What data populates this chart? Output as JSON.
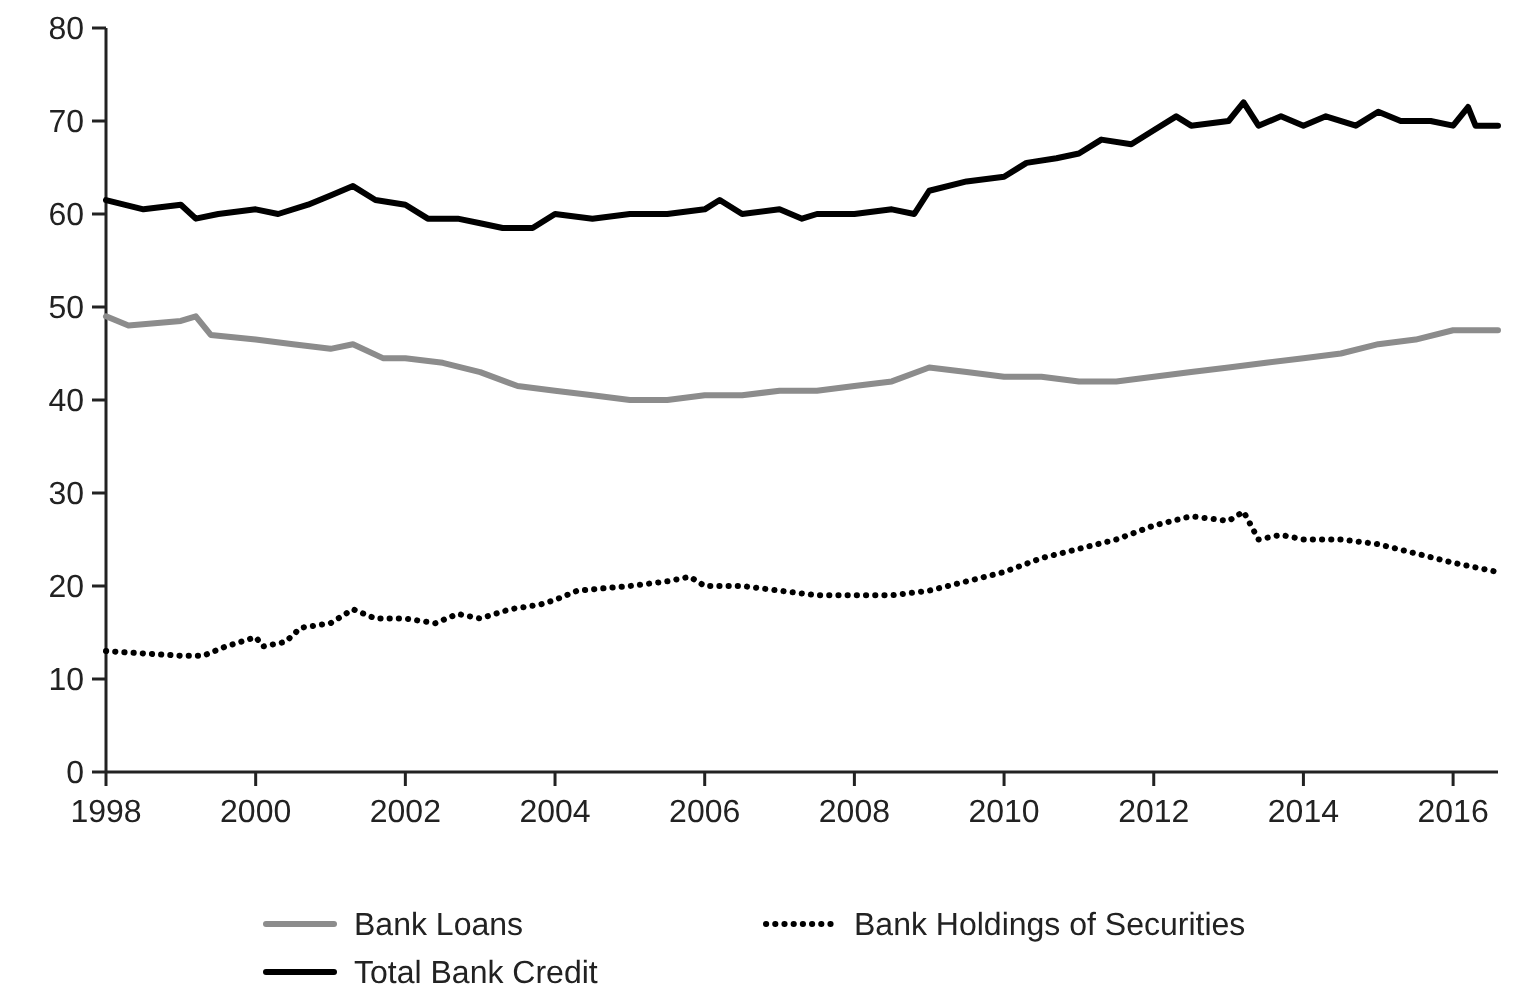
{
  "chart_data": {
    "type": "line",
    "xlim": [
      1998,
      2016.6
    ],
    "xticks": [
      1998,
      2000,
      2002,
      2004,
      2006,
      2008,
      2010,
      2012,
      2014,
      2016
    ],
    "ylim": [
      0,
      80
    ],
    "yticks": [
      0,
      10,
      20,
      30,
      40,
      50,
      60,
      70,
      80
    ],
    "grid": false,
    "legend": "bottom",
    "series": [
      {
        "name": "Bank Loans",
        "color": "#8c8c8c",
        "line_style": "solid",
        "x": [
          1998,
          1998.3,
          1999,
          1999.2,
          1999.4,
          2000,
          2000.5,
          2001,
          2001.3,
          2001.7,
          2002,
          2002.5,
          2003,
          2003.5,
          2004,
          2004.5,
          2005,
          2005.5,
          2006,
          2006.5,
          2007,
          2007.5,
          2008,
          2008.5,
          2009,
          2009.5,
          2010,
          2010.5,
          2011,
          2011.5,
          2012,
          2012.5,
          2013,
          2013.5,
          2014,
          2014.5,
          2015,
          2015.5,
          2016,
          2016.6
        ],
        "values": [
          49,
          48,
          48.5,
          49,
          47,
          46.5,
          46,
          45.5,
          46,
          44.5,
          44.5,
          44,
          43,
          41.5,
          41,
          40.5,
          40,
          40,
          40.5,
          40.5,
          41,
          41,
          41.5,
          42,
          43.5,
          43,
          42.5,
          42.5,
          42,
          42,
          42.5,
          43,
          43.5,
          44,
          44.5,
          45,
          46,
          46.5,
          47.5,
          47.5
        ]
      },
      {
        "name": "Bank Holdings of Securities",
        "color": "#000000",
        "line_style": "dotted",
        "x": [
          1998,
          1999,
          1999.3,
          1999.6,
          2000,
          2000.1,
          2000.4,
          2000.6,
          2001,
          2001.3,
          2001.6,
          2002,
          2002.4,
          2002.7,
          2003,
          2003.4,
          2003.8,
          2004,
          2004.3,
          2005,
          2005.5,
          2005.8,
          2006,
          2006.5,
          2007,
          2007.5,
          2008,
          2008.5,
          2009,
          2009.5,
          2010,
          2010.5,
          2011,
          2011.5,
          2012,
          2012.5,
          2013,
          2013.2,
          2013.4,
          2013.7,
          2014,
          2014.5,
          2015,
          2015.5,
          2016,
          2016.6
        ],
        "values": [
          13,
          12.5,
          12.5,
          13.5,
          14.5,
          13.5,
          14,
          15.5,
          16,
          17.5,
          16.5,
          16.5,
          16,
          17,
          16.5,
          17.5,
          18,
          18.5,
          19.5,
          20,
          20.5,
          21,
          20,
          20,
          19.5,
          19,
          19,
          19,
          19.5,
          20.5,
          21.5,
          23,
          24,
          25,
          26.5,
          27.5,
          27,
          28,
          25,
          25.5,
          25,
          25,
          24.5,
          23.5,
          22.5,
          21.5
        ]
      },
      {
        "name": "Total Bank Credit",
        "color": "#000000",
        "line_style": "solid",
        "x": [
          1998,
          1998.5,
          1999,
          1999.2,
          1999.5,
          2000,
          2000.3,
          2000.7,
          2001,
          2001.3,
          2001.6,
          2002,
          2002.3,
          2002.7,
          2003,
          2003.3,
          2003.7,
          2004,
          2004.5,
          2005,
          2005.5,
          2006,
          2006.2,
          2006.5,
          2007,
          2007.3,
          2007.5,
          2008,
          2008.5,
          2008.8,
          2009,
          2009.5,
          2010,
          2010.3,
          2010.7,
          2011,
          2011.3,
          2011.7,
          2012,
          2012.3,
          2012.5,
          2013,
          2013.2,
          2013.4,
          2013.7,
          2014,
          2014.3,
          2014.7,
          2015,
          2015.3,
          2015.7,
          2016,
          2016.2,
          2016.3,
          2016.6
        ],
        "values": [
          61.5,
          60.5,
          61,
          59.5,
          60,
          60.5,
          60,
          61,
          62,
          63,
          61.5,
          61,
          59.5,
          59.5,
          59,
          58.5,
          58.5,
          60,
          59.5,
          60,
          60,
          60.5,
          61.5,
          60,
          60.5,
          59.5,
          60,
          60,
          60.5,
          60,
          62.5,
          63.5,
          64,
          65.5,
          66,
          66.5,
          68,
          67.5,
          69,
          70.5,
          69.5,
          70,
          72,
          69.5,
          70.5,
          69.5,
          70.5,
          69.5,
          71,
          70,
          70,
          69.5,
          71.5,
          69.5,
          69.5
        ]
      }
    ]
  }
}
